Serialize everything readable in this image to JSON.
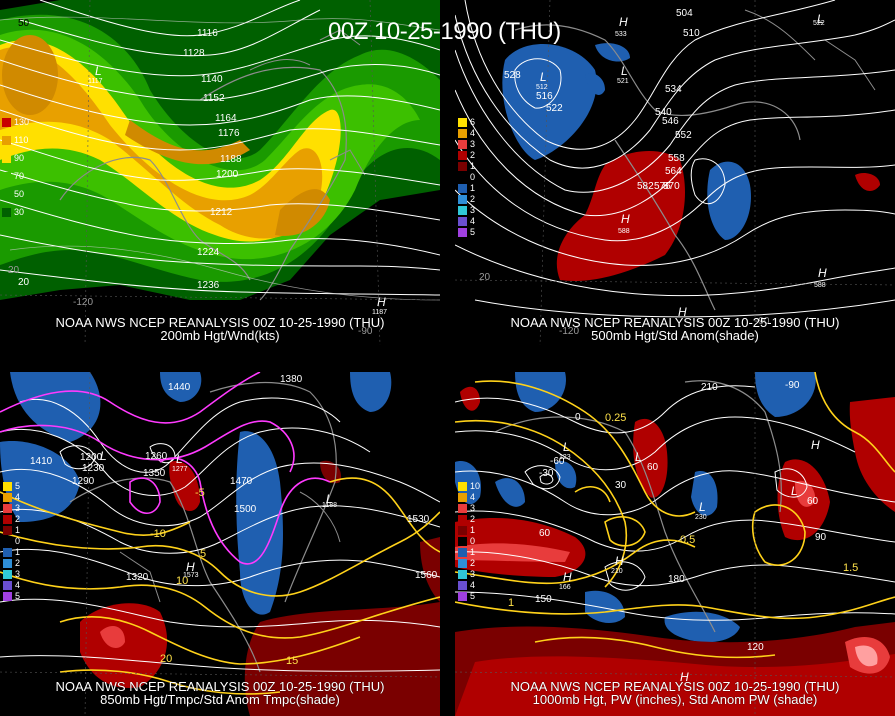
{
  "title": "00Z 10-25-1990 (THU)",
  "panels": [
    {
      "caption_line1": "NOAA NWS NCEP REANALYSIS 00Z 10-25-1990 (THU)",
      "caption_line2": "200mb Hgt/Wnd(kts)",
      "legend": [
        "130",
        "110",
        "90",
        "70",
        "50",
        "30"
      ],
      "legend_colors": [
        "#c80000",
        "#e8a000",
        "#ffe000",
        "#3cc000",
        "#1a9a00",
        "#006000"
      ],
      "contour_labels": [
        "1116",
        "1128",
        "1140",
        "1152",
        "1164",
        "1176",
        "1188",
        "1200",
        "1212",
        "1224",
        "1236"
      ],
      "extra_labels": [
        "50",
        "20",
        "20",
        "-120",
        "-90"
      ],
      "symbols": [
        "L",
        "H"
      ],
      "low_value": "1117",
      "high_value": "1187"
    },
    {
      "caption_line1": "NOAA NWS NCEP REANALYSIS 00Z 10-25-1990 (THU)",
      "caption_line2": "500mb Hgt/Std Anom(shade)",
      "legend": [
        "6",
        "4",
        "3",
        "2",
        "1",
        "0",
        "1",
        "2",
        "3",
        "4",
        "5"
      ],
      "legend_colors": [
        "#ffe000",
        "#e8a000",
        "#e83c3c",
        "#b00000",
        "#7a0000",
        "#000000",
        "#1f5fb0",
        "#2f8fd8",
        "#30c8d8",
        "#6a4fd0",
        "#a040e0"
      ],
      "contour_labels": [
        "504",
        "510",
        "516",
        "522",
        "528",
        "534",
        "540",
        "546",
        "552",
        "558",
        "564",
        "570",
        "576",
        "582",
        "588"
      ],
      "extra_labels": [
        "20",
        "-120",
        "-90"
      ],
      "symbols": [
        "H",
        "L",
        "L",
        "L",
        "H",
        "H",
        "H"
      ],
      "low_values": [
        "533",
        "512",
        "521",
        "522"
      ],
      "high_values": [
        "588",
        "588"
      ]
    },
    {
      "caption_line1": "NOAA NWS NCEP REANALYSIS 00Z 10-25-1990 (THU)",
      "caption_line2": "850mb Hgt/Tmpc/Std Anom Tmpc(shade)",
      "legend": [
        "5",
        "4",
        "3",
        "2",
        "1",
        "0",
        "1",
        "2",
        "3",
        "4",
        "5"
      ],
      "legend_colors": [
        "#ffe000",
        "#e8a000",
        "#e83c3c",
        "#b00000",
        "#7a0000",
        "#000000",
        "#1f5fb0",
        "#2f8fd8",
        "#30c8d8",
        "#6a4fd0",
        "#a040e0"
      ],
      "contour_labels": [
        "1200",
        "1230",
        "1260",
        "1290",
        "1320",
        "1350",
        "1380",
        "1410",
        "1440",
        "1470",
        "1500",
        "1530",
        "1560"
      ],
      "temp_labels": [
        "-10",
        "-5",
        "5",
        "10",
        "15",
        "20"
      ],
      "symbols": [
        "L",
        "L",
        "H",
        "L"
      ],
      "low_values": [
        "1277",
        "1188"
      ],
      "high_value": "1573"
    },
    {
      "caption_line1": "NOAA NWS NCEP REANALYSIS 00Z 10-25-1990 (THU)",
      "caption_line2": "1000mb Hgt, PW (inches), Std Anom PW (shade)",
      "legend": [
        "10",
        "4",
        "3",
        "2",
        "1",
        "0",
        "1",
        "2",
        "3",
        "4",
        "5"
      ],
      "legend_colors": [
        "#ffe000",
        "#e8a000",
        "#e83c3c",
        "#b00000",
        "#7a0000",
        "#000000",
        "#1f5fb0",
        "#2f8fd8",
        "#30c8d8",
        "#6a4fd0",
        "#a040e0"
      ],
      "contour_labels": [
        "-90",
        "-60",
        "-30",
        "0",
        "30",
        "60",
        "90",
        "120",
        "150",
        "180",
        "210"
      ],
      "pw_labels": [
        "0.25",
        "0.5",
        "1",
        "1.5"
      ],
      "symbols": [
        "L",
        "L",
        "L",
        "H",
        "H",
        "H",
        "L",
        "H"
      ],
      "low_values": [
        "123",
        "60",
        "230",
        "60"
      ],
      "high_values": [
        "166",
        "210"
      ]
    }
  ]
}
